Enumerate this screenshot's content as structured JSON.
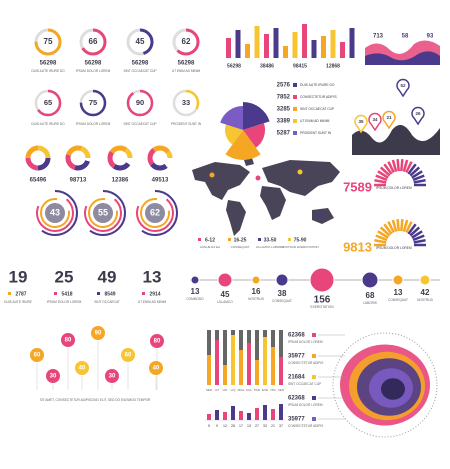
{
  "gauges_row1": [
    {
      "value": 75,
      "number": 56298,
      "caption": "DUIS AUTE IRURE DO"
    },
    {
      "value": 66,
      "number": 56298,
      "caption": "IPSUM DOLOR LOREM"
    },
    {
      "value": 45,
      "number": 56298,
      "caption": "SINT OCCAECAT CUP"
    },
    {
      "value": 62,
      "number": 56298,
      "caption": "UT ENIM AD MINIM"
    }
  ],
  "gauges_row2": [
    {
      "value": 65,
      "caption": "DUIS AUTE IRURE DO"
    },
    {
      "value": 75,
      "caption": "IPSUM DOLOR LOREM"
    },
    {
      "value": 90,
      "caption": "SINT OCCAECAT CUP"
    },
    {
      "value": 33,
      "caption": "PROIDENT SUNT IN"
    }
  ],
  "bar_labels": [
    56298,
    38486,
    98415,
    12868
  ],
  "wave_labels": [
    713,
    58,
    93
  ],
  "pie_legend": [
    {
      "value": 2576,
      "label": "DUIS AUTE IRURE DO"
    },
    {
      "value": 7852,
      "label": "CONSECTETUR ADIPIS"
    },
    {
      "value": 3285,
      "label": "SINT OCCAECAT CUP"
    },
    {
      "value": 3389,
      "label": "UT ENIM AD MINIM"
    },
    {
      "value": 5287,
      "label": "PROIDENT SUNT IN"
    }
  ],
  "pins_top": [
    52,
    34,
    21,
    35,
    26
  ],
  "donuts": [
    65496,
    98713,
    12386,
    49513
  ],
  "rings": [
    43,
    55,
    62
  ],
  "map_legend": [
    {
      "range": "6-12",
      "label": "AUGUE EX EA"
    },
    {
      "range": "16-25",
      "label": "CONSEQUAT"
    },
    {
      "range": "33-50",
      "label": "ULLAMCO LABORIS"
    },
    {
      "range": "75-90",
      "label": "NOSTRUD EXERCITATION"
    }
  ],
  "half_gauges": [
    {
      "value": 7589,
      "caption": "IPSUM DOLOR LOREM"
    },
    {
      "value": 9813,
      "caption": "IPSUM DOLOR LOREM"
    }
  ],
  "stats": [
    {
      "value": 19,
      "number": 2787,
      "caption": "DUIS AUTE IRURE"
    },
    {
      "value": 25,
      "number": 5418,
      "caption": "IPSUM DOLOR LOREM"
    },
    {
      "value": 49,
      "number": 8549,
      "caption": "SINT OCCAECAT"
    },
    {
      "value": 13,
      "number": 2914,
      "caption": "UT ENIM AD MINIM"
    }
  ],
  "timeline": [
    {
      "value": 13,
      "label": "COMMODO"
    },
    {
      "value": 45,
      "label": "ULLAMCO"
    },
    {
      "value": 16,
      "label": "NOSTRUD"
    },
    {
      "value": 38,
      "label": "CONSEQUAT"
    },
    {
      "value": 156,
      "label": "EXERCITATION"
    },
    {
      "value": 68,
      "label": "LABORIS"
    },
    {
      "value": 13,
      "label": "CONSEQUAT"
    },
    {
      "value": 42,
      "label": "NOSTRUD"
    }
  ],
  "pins_bottom": [
    60,
    80,
    30,
    40,
    90,
    30,
    60,
    80,
    40
  ],
  "bar_axis": [
    "SED",
    "UT",
    "LID",
    "LIQ",
    "MAG",
    "CUL",
    "PAR",
    "EXE",
    "NIS",
    "VEN"
  ],
  "small_bar_labels": [
    5,
    9,
    12,
    28,
    17,
    13,
    27,
    33,
    21,
    37
  ],
  "blob_legend": [
    {
      "value": 62368,
      "label": "IPSUM DOLOR LOREM"
    },
    {
      "value": 35977,
      "label": "CONSECTETUR ADIPIS"
    },
    {
      "value": 21684,
      "label": "SINT OCCAECAT CUP"
    },
    {
      "value": 62368,
      "label": "IPSUM DOLOR LOREM"
    },
    {
      "value": 35977,
      "label": "CONSECTETUR ADIPIS"
    }
  ],
  "footer_text": "SIT AMET, CONSECTETUR ADIPISCING ELIT, SED DO EIUSMOD TEMPOR"
}
